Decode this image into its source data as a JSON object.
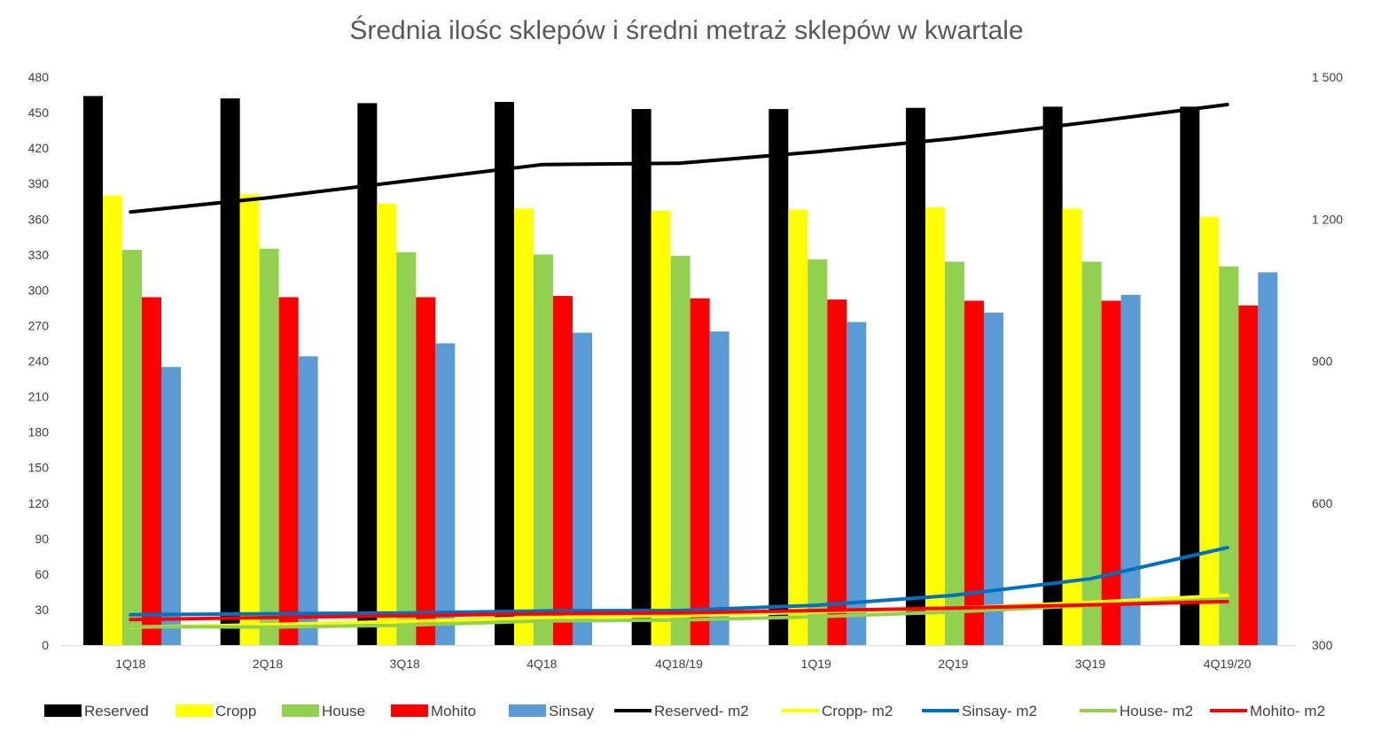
{
  "chart_data": {
    "type": "bar",
    "title": "Średnia ilośc sklepów i średni metraż sklepów w kwartale",
    "categories": [
      "1Q18",
      "2Q18",
      "3Q18",
      "4Q18",
      "4Q18/19",
      "1Q19",
      "2Q19",
      "3Q19",
      "4Q19/20"
    ],
    "y_left": {
      "min": 0,
      "max": 480,
      "step": 30,
      "tick_labels": [
        "0",
        "30",
        "60",
        "90",
        "120",
        "150",
        "180",
        "210",
        "240",
        "270",
        "300",
        "330",
        "360",
        "390",
        "420",
        "450",
        "480"
      ]
    },
    "y_right": {
      "min": 300,
      "max": 1500,
      "step": 300,
      "tick_labels": [
        "300",
        "600",
        "900",
        "1 200",
        "1 500"
      ]
    },
    "grid": false,
    "legend_position": "bottom",
    "bar_series": [
      {
        "name": "Reserved",
        "color": "#000000",
        "values": [
          464,
          462,
          458,
          459,
          453,
          453,
          454,
          455,
          455
        ]
      },
      {
        "name": "Cropp",
        "color": "#FFFF00",
        "values": [
          380,
          381,
          373,
          369,
          367,
          368,
          370,
          369,
          362
        ]
      },
      {
        "name": "House",
        "color": "#92D050",
        "values": [
          334,
          335,
          332,
          330,
          329,
          326,
          324,
          324,
          320
        ]
      },
      {
        "name": "Mohito",
        "color": "#FF0000",
        "values": [
          294,
          294,
          294,
          295,
          293,
          292,
          291,
          291,
          287
        ]
      },
      {
        "name": "Sinsay",
        "color": "#5B9BD5",
        "values": [
          235,
          244,
          255,
          264,
          265,
          273,
          281,
          296,
          315
        ]
      }
    ],
    "line_series": [
      {
        "name": "Reserved- m2",
        "color": "#000000",
        "values": [
          1215,
          1245,
          1280,
          1315,
          1318,
          1342,
          1370,
          1405,
          1442
        ]
      },
      {
        "name": "Cropp- m2",
        "color": "#FFFF00",
        "values": [
          338,
          343,
          350,
          358,
          362,
          370,
          378,
          390,
          405
        ]
      },
      {
        "name": "Sinsay- m2",
        "color": "#0070C0",
        "values": [
          364,
          366,
          368,
          372,
          373,
          384,
          405,
          440,
          506
        ]
      },
      {
        "name": "House- m2",
        "color": "#92D050",
        "values": [
          339,
          338,
          342,
          351,
          353,
          360,
          370,
          384,
          398
        ]
      },
      {
        "name": "Mohito- m2",
        "color": "#FF0000",
        "values": [
          354,
          358,
          362,
          366,
          368,
          373,
          378,
          385,
          392
        ]
      }
    ]
  }
}
